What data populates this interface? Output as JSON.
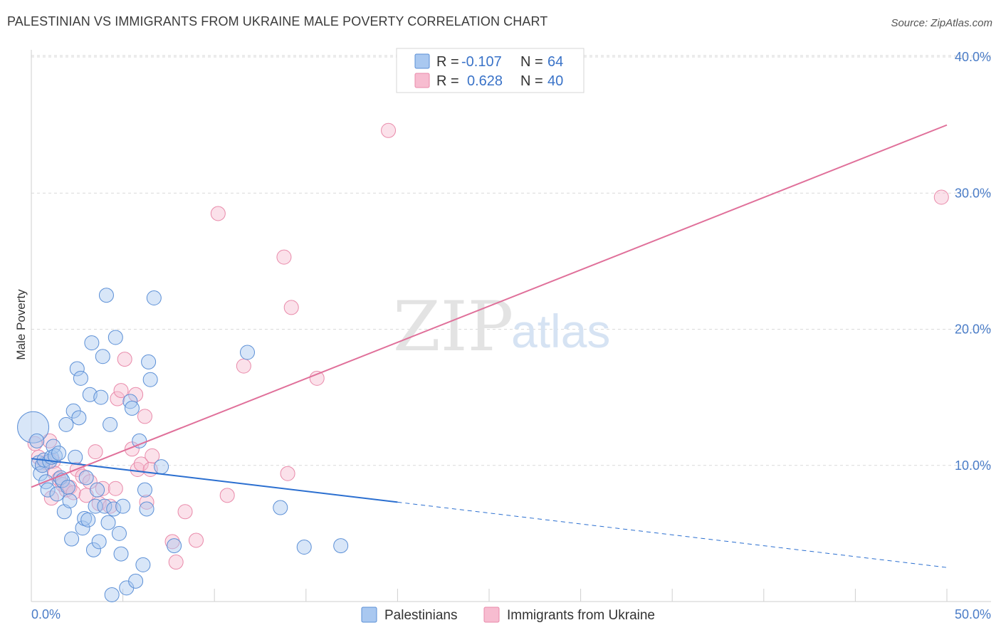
{
  "header": {
    "title": "PALESTINIAN VS IMMIGRANTS FROM UKRAINE MALE POVERTY CORRELATION CHART",
    "source": "Source: ZipAtlas.com"
  },
  "watermark": {
    "zip": "ZIP",
    "atlas": "atlas"
  },
  "colors": {
    "blue_fill": "#a9c8f0",
    "blue_stroke": "#5b8fd6",
    "blue_line": "#2b6fd0",
    "pink_fill": "#f7bcd0",
    "pink_stroke": "#e98aaa",
    "pink_line": "#e0709a",
    "tick_text": "#4a7cc7",
    "grid": "#d9d9d9"
  },
  "legend": {
    "rows": [
      {
        "r_label": "R =",
        "r_value": "-0.107",
        "n_label": "N =",
        "n_value": "64"
      },
      {
        "r_label": "R =",
        "r_value": "0.628",
        "n_label": "N =",
        "n_value": "40"
      }
    ]
  },
  "chart_data": {
    "type": "scatter",
    "title": "PALESTINIAN VS IMMIGRANTS FROM UKRAINE MALE POVERTY CORRELATION CHART",
    "xlabel": "",
    "ylabel": "Male Poverty",
    "xlim": [
      0,
      50
    ],
    "ylim": [
      0,
      40
    ],
    "x_tick_labels": [
      "0.0%",
      "50.0%"
    ],
    "y_ticks": [
      10,
      20,
      30,
      40
    ],
    "y_tick_labels": [
      "10.0%",
      "20.0%",
      "30.0%",
      "40.0%"
    ],
    "grid": true,
    "legend_position": "bottom",
    "series": [
      {
        "name": "Palestinians",
        "r": -0.107,
        "n": 64,
        "trend": {
          "x0": 0,
          "y0": 10.5,
          "x1": 20,
          "y1": 7.3,
          "dash_to_x": 50,
          "dash_to_y": 2.5
        },
        "points": [
          [
            0.1,
            12.8
          ],
          [
            0.3,
            11.8
          ],
          [
            0.4,
            10.2
          ],
          [
            0.5,
            9.4
          ],
          [
            0.6,
            10.0
          ],
          [
            0.7,
            10.4
          ],
          [
            0.8,
            8.8
          ],
          [
            0.9,
            8.2
          ],
          [
            1.0,
            10.3
          ],
          [
            1.1,
            10.6
          ],
          [
            1.2,
            11.4
          ],
          [
            1.3,
            10.7
          ],
          [
            1.4,
            7.9
          ],
          [
            1.5,
            10.9
          ],
          [
            1.6,
            9.1
          ],
          [
            1.7,
            8.9
          ],
          [
            1.8,
            6.6
          ],
          [
            1.9,
            13.0
          ],
          [
            2.0,
            8.4
          ],
          [
            2.1,
            7.4
          ],
          [
            2.2,
            4.6
          ],
          [
            2.3,
            14.0
          ],
          [
            2.4,
            10.6
          ],
          [
            2.5,
            17.1
          ],
          [
            2.6,
            13.5
          ],
          [
            2.7,
            16.4
          ],
          [
            2.8,
            5.4
          ],
          [
            2.9,
            6.1
          ],
          [
            3.0,
            9.1
          ],
          [
            3.1,
            6.0
          ],
          [
            3.2,
            15.2
          ],
          [
            3.3,
            19.0
          ],
          [
            3.4,
            3.8
          ],
          [
            3.5,
            7.0
          ],
          [
            3.6,
            8.2
          ],
          [
            3.7,
            4.4
          ],
          [
            3.8,
            15.0
          ],
          [
            3.9,
            18.0
          ],
          [
            4.0,
            7.0
          ],
          [
            4.1,
            22.5
          ],
          [
            4.2,
            5.8
          ],
          [
            4.3,
            13.0
          ],
          [
            4.4,
            0.5
          ],
          [
            4.5,
            6.8
          ],
          [
            4.6,
            19.4
          ],
          [
            4.8,
            5.0
          ],
          [
            4.9,
            3.5
          ],
          [
            5.0,
            7.0
          ],
          [
            5.2,
            1.0
          ],
          [
            5.4,
            14.7
          ],
          [
            5.5,
            14.2
          ],
          [
            5.7,
            1.5
          ],
          [
            5.9,
            11.8
          ],
          [
            6.1,
            2.7
          ],
          [
            6.2,
            8.2
          ],
          [
            6.3,
            6.8
          ],
          [
            6.4,
            17.6
          ],
          [
            6.5,
            16.3
          ],
          [
            6.7,
            22.3
          ],
          [
            7.1,
            9.9
          ],
          [
            7.8,
            4.1
          ],
          [
            11.8,
            18.3
          ],
          [
            13.6,
            6.9
          ],
          [
            14.9,
            4.0
          ]
        ],
        "point_sizes": [
          22,
          10,
          10,
          10,
          10,
          10,
          10,
          10,
          10,
          10,
          10,
          10,
          10,
          10,
          10,
          10,
          10,
          10,
          10,
          10,
          10,
          10,
          10,
          10,
          10,
          10,
          10,
          10,
          10,
          10,
          10,
          10,
          10,
          10,
          10,
          10,
          10,
          10,
          10,
          10,
          10,
          10,
          10,
          10,
          10,
          10,
          10,
          10,
          10,
          10,
          10,
          10,
          10,
          10,
          10,
          10,
          10,
          10,
          10,
          10,
          10,
          10,
          10,
          10
        ],
        "extra_points": [
          [
            16.9,
            4.1
          ]
        ]
      },
      {
        "name": "Immigrants from Ukraine",
        "r": 0.628,
        "n": 40,
        "trend": {
          "x0": 0,
          "y0": 8.4,
          "x1": 50,
          "y1": 35.0
        },
        "points": [
          [
            0.2,
            11.6
          ],
          [
            0.4,
            10.6
          ],
          [
            0.6,
            10.0
          ],
          [
            0.8,
            10.2
          ],
          [
            1.0,
            11.8
          ],
          [
            1.1,
            7.6
          ],
          [
            1.2,
            10.3
          ],
          [
            1.3,
            9.4
          ],
          [
            1.5,
            9.0
          ],
          [
            1.7,
            8.6
          ],
          [
            1.9,
            8.2
          ],
          [
            2.1,
            8.4
          ],
          [
            2.3,
            8.0
          ],
          [
            2.5,
            9.7
          ],
          [
            2.8,
            9.2
          ],
          [
            3.0,
            7.8
          ],
          [
            3.2,
            8.8
          ],
          [
            3.5,
            11.0
          ],
          [
            3.7,
            7.2
          ],
          [
            3.9,
            8.3
          ],
          [
            4.3,
            7.0
          ],
          [
            4.6,
            8.3
          ],
          [
            4.7,
            14.9
          ],
          [
            4.9,
            15.5
          ],
          [
            5.1,
            17.8
          ],
          [
            5.5,
            11.2
          ],
          [
            5.7,
            15.2
          ],
          [
            5.8,
            9.7
          ],
          [
            6.0,
            10.1
          ],
          [
            6.2,
            13.6
          ],
          [
            6.3,
            7.3
          ],
          [
            6.5,
            9.7
          ],
          [
            6.6,
            10.7
          ],
          [
            7.7,
            4.4
          ],
          [
            7.9,
            2.9
          ],
          [
            8.4,
            6.6
          ],
          [
            9.0,
            4.5
          ],
          [
            10.2,
            28.5
          ],
          [
            10.7,
            7.8
          ],
          [
            11.6,
            17.3
          ]
        ],
        "extra_points": [
          [
            13.8,
            25.3
          ],
          [
            14.0,
            9.4
          ],
          [
            14.2,
            21.6
          ],
          [
            15.6,
            16.4
          ],
          [
            19.5,
            34.6
          ],
          [
            49.7,
            29.7
          ]
        ]
      }
    ]
  },
  "bottom_legend": {
    "items": [
      "Palestinians",
      "Immigrants from Ukraine"
    ]
  }
}
